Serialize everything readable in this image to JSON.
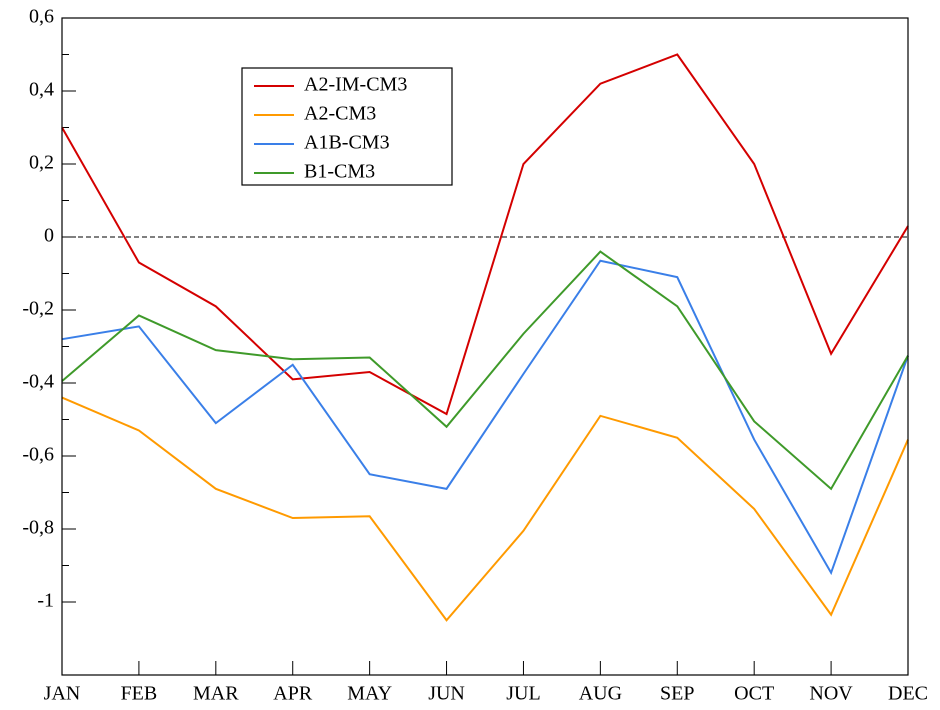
{
  "chart_data": {
    "type": "line",
    "categories": [
      "JAN",
      "FEB",
      "MAR",
      "APR",
      "MAY",
      "JUN",
      "JUL",
      "AUG",
      "SEP",
      "OCT",
      "NOV",
      "DEC"
    ],
    "series": [
      {
        "name": "A2-IM-CM3",
        "color": "#d40000",
        "values": [
          0.3,
          -0.07,
          -0.19,
          -0.39,
          -0.37,
          -0.485,
          0.2,
          0.42,
          0.5,
          0.2,
          -0.32,
          0.03
        ]
      },
      {
        "name": "A2-CM3",
        "color": "#ff9a00",
        "values": [
          -0.44,
          -0.53,
          -0.69,
          -0.77,
          -0.765,
          -1.05,
          -0.805,
          -0.49,
          -0.55,
          -0.745,
          -1.035,
          -0.555
        ]
      },
      {
        "name": "A1B-CM3",
        "color": "#3a7fe8",
        "values": [
          -0.28,
          -0.245,
          -0.51,
          -0.35,
          -0.65,
          -0.69,
          -0.375,
          -0.065,
          -0.11,
          -0.555,
          -0.92,
          -0.325
        ]
      },
      {
        "name": "B1-CM3",
        "color": "#3f9a2a",
        "values": [
          -0.395,
          -0.215,
          -0.31,
          -0.335,
          -0.33,
          -0.52,
          -0.265,
          -0.04,
          -0.19,
          -0.505,
          -0.69,
          -0.325
        ]
      }
    ],
    "ylim": [
      -1.2,
      0.6
    ],
    "yticks": [
      {
        "value": 0.6,
        "label": "0,6"
      },
      {
        "value": 0.4,
        "label": "0,4"
      },
      {
        "value": 0.2,
        "label": "0,2"
      },
      0,
      {
        "value": -0.2,
        "label": "-0,2"
      },
      {
        "value": -0.4,
        "label": "-0,4"
      },
      {
        "value": -0.6,
        "label": "-0,6"
      },
      {
        "value": -0.8,
        "label": "-0,8"
      },
      -1
    ],
    "reference_line": 0
  }
}
